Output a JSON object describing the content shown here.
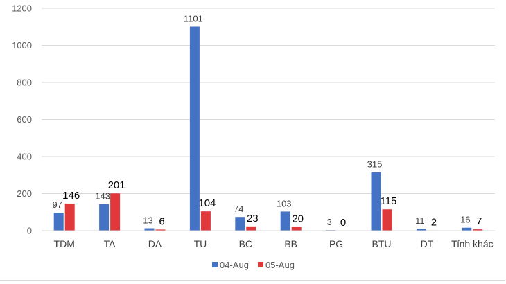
{
  "chart_data": {
    "type": "bar",
    "title": "",
    "xlabel": "",
    "ylabel": "",
    "ylim": [
      0,
      1200
    ],
    "yticks": [
      0,
      200,
      400,
      600,
      800,
      1000,
      1200
    ],
    "grid": true,
    "legend_position": "bottom",
    "categories": [
      "TDM",
      "TA",
      "DA",
      "TU",
      "BC",
      "BB",
      "PG",
      "BTU",
      "DT",
      "Tỉnh khác"
    ],
    "series": [
      {
        "name": "04-Aug",
        "color": "#4472C4",
        "values": [
          97,
          143,
          13,
          1101,
          74,
          103,
          3,
          315,
          11,
          16
        ]
      },
      {
        "name": "05-Aug",
        "color": "#E0383B",
        "values": [
          146,
          201,
          6,
          104,
          23,
          20,
          0,
          115,
          2,
          7
        ]
      }
    ]
  }
}
